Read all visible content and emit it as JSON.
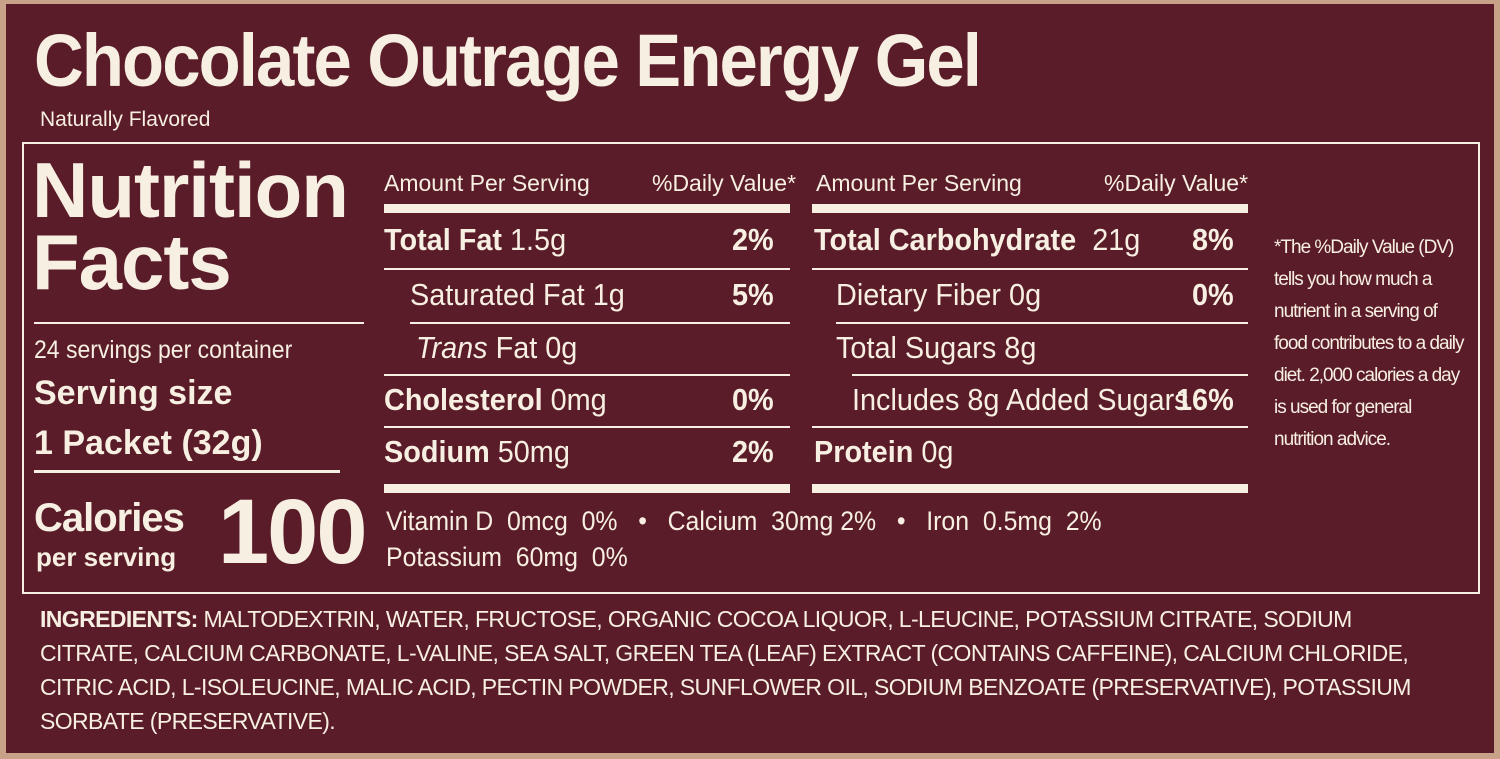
{
  "header": {
    "title": "Chocolate Outrage Energy Gel",
    "subtitle": "Naturally Flavored"
  },
  "facts": {
    "heading": "Nutrition Facts",
    "servings": "24 servings per container",
    "serving_size_label": "Serving size",
    "serving_size": "1 Packet (32g)",
    "calories_label": "Calories",
    "calories_sub": "per serving",
    "calories": 100
  },
  "left": {
    "header": [
      "Amount Per Serving",
      "%Daily Value*"
    ],
    "rows": [
      {
        "name": "Total Fat",
        "amount": "1.5g",
        "dv": "2%"
      },
      {
        "name": "Saturated Fat",
        "amount": "1g",
        "dv": "5%"
      },
      {
        "name_italic": "Trans",
        "name": "Fat",
        "amount": "0g"
      },
      {
        "name": "Cholesterol",
        "amount": "0mg",
        "dv": "0%"
      },
      {
        "name": "Sodium",
        "amount": "50mg",
        "dv": "2%"
      }
    ]
  },
  "right": {
    "header": [
      "Amount Per Serving",
      "%Daily Value*"
    ],
    "rows": [
      {
        "name": "Total Carbohydrate",
        "amount": "21g",
        "dv": "8%"
      },
      {
        "name": "Dietary Fiber",
        "amount": "0g",
        "dv": "0%"
      },
      {
        "name": "Total Sugars",
        "amount": "8g"
      },
      {
        "name": "Includes 8g Added Sugars",
        "dv": "16%"
      },
      {
        "name": "Protein",
        "amount": "0g"
      }
    ]
  },
  "vitamins": [
    {
      "name": "Vitamin D",
      "amount": "0mcg",
      "dv": "0%"
    },
    {
      "name": "Calcium",
      "amount": "30mg",
      "dv": "2%"
    },
    {
      "name": "Iron",
      "amount": "0.5mg",
      "dv": "2%"
    },
    {
      "name": "Potassium",
      "amount": "60mg",
      "dv": "0%"
    }
  ],
  "footnote": "*The %Daily Value (DV) tells you how much a nutrient in a serving of food contributes to a daily diet. 2,000 calories a day is used for general nutrition advice.",
  "ingredients": {
    "label": "INGREDIENTS:",
    "text": "MALTODEXTRIN, WATER, FRUCTOSE, ORGANIC COCOA LIQUOR, L-LEUCINE, POTASSIUM CITRATE, SODIUM CITRATE, CALCIUM CARBONATE, L-VALINE, SEA SALT, GREEN TEA (LEAF) EXTRACT (CONTAINS CAFFEINE), CALCIUM CHLORIDE, CITRIC ACID, L-ISOLEUCINE, MALIC ACID, PECTIN POWDER, SUNFLOWER OIL, SODIUM BENZOATE (PRESERVATIVE), POTASSIUM SORBATE (PRESERVATIVE)."
  }
}
